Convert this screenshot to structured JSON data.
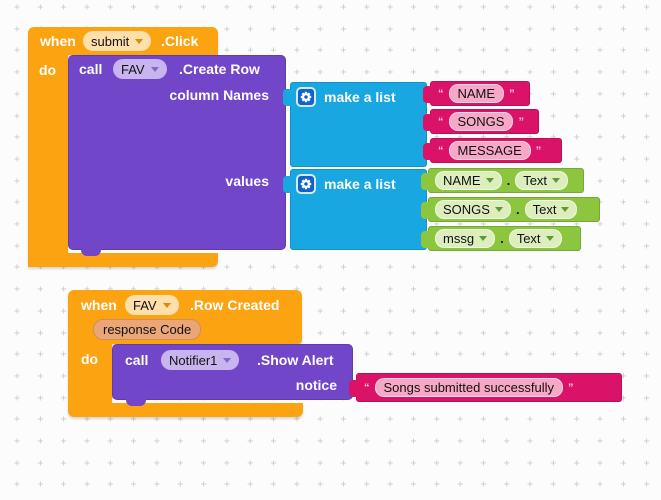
{
  "colors": {
    "workspace_bg": "#FCFCFC",
    "grid_plus": "#CBCBCB",
    "event_block": "#FCA312",
    "event_pill": "#FFDFAC",
    "call_block": "#7246C8",
    "call_pill": "#C8B5EF",
    "list_block": "#18A7E0",
    "gear_button": "#1063C9",
    "text_block": "#DB1368",
    "text_field": "#F7A8C6",
    "getter_block": "#8CC63E",
    "getter_pill": "#DCEDBE",
    "param_badge": "#EBA678"
  },
  "punctuation": {
    "open_quote": "“",
    "close_quote": "”"
  },
  "block1": {
    "when_label": "when",
    "component": "submit",
    "event_label": ".Click",
    "do_label": "do",
    "call_block": {
      "call_label": "call",
      "component": "FAV",
      "method_label": ".Create Row",
      "arg1_label": "column Names",
      "arg2_label": "values"
    },
    "list1": {
      "label": "make a list",
      "items": [
        "NAME",
        "SONGS",
        "MESSAGE"
      ]
    },
    "list2": {
      "label": "make a list",
      "items": [
        {
          "component": "NAME",
          "dot": ".",
          "property": "Text"
        },
        {
          "component": "SONGS",
          "dot": ".",
          "property": "Text"
        },
        {
          "component": "mssg",
          "dot": ".",
          "property": "Text"
        }
      ]
    }
  },
  "block2": {
    "when_label": "when",
    "component": "FAV",
    "event_label": ".Row Created",
    "param_label": "response Code",
    "do_label": "do",
    "call_block": {
      "call_label": "call",
      "component": "Notifier1",
      "method_label": ".Show Alert",
      "arg_label": "notice",
      "text_value": "Songs submitted successfully"
    }
  }
}
